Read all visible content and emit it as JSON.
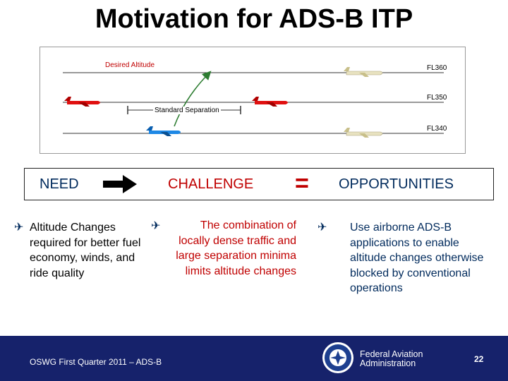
{
  "title": "Motivation for ADS-B ITP",
  "diagram": {
    "desired_altitude": "Desired Altitude",
    "standard_separation": "Standard Separation",
    "levels": [
      "FL360",
      "FL350",
      "FL340"
    ]
  },
  "banner": {
    "need": "NEED",
    "challenge": "CHALLENGE",
    "equals": "=",
    "opportunities": "OPPORTUNITIES"
  },
  "bullet_symbol": "✈",
  "columns": {
    "need_text": "Altitude Changes required for better fuel economy, winds, and ride quality",
    "challenge_text": "The combination of locally dense traffic and large separation minima limits altitude changes",
    "opportunity_text": "Use airborne ADS-B applications to enable altitude changes otherwise blocked by conventional operations"
  },
  "footer": {
    "left_text": "OSWG First Quarter 2011 – ADS-B",
    "org_line1": "Federal Aviation",
    "org_line2": "Administration",
    "page_number": "22"
  },
  "colors": {
    "navy": "#16226b",
    "red": "#c00000",
    "blue_text": "#002a5c",
    "green_arrow": "#2e7d32"
  }
}
